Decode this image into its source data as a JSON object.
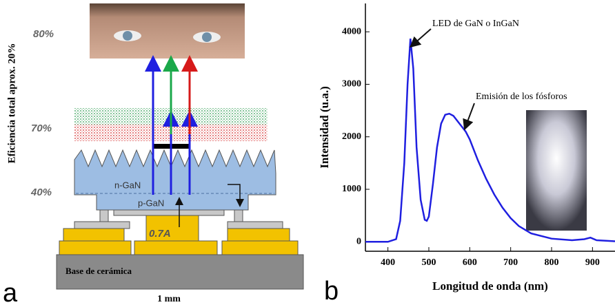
{
  "diagram": {
    "side_label": "Eficiencia total aprox. 20%",
    "levels": [
      "80%",
      "70%",
      "40%"
    ],
    "layers": [
      "n-GaN",
      "p-GaN"
    ],
    "current": "0.7A",
    "base": "Base de cerámica",
    "scale": "1 mm",
    "panel": "a"
  },
  "chart_data": {
    "type": "line",
    "panel": "b",
    "xlabel": "Longitud de onda (nm)",
    "ylabel": "Intensidad (u.a.)",
    "annotations": [
      "LED de GaN o InGaN",
      "Emisión de los fósforos"
    ],
    "color": "#1f1fe0",
    "x": [
      345,
      400,
      420,
      430,
      440,
      448,
      455,
      462,
      470,
      480,
      490,
      495,
      500,
      510,
      520,
      530,
      540,
      550,
      560,
      570,
      580,
      590,
      600,
      620,
      640,
      660,
      680,
      700,
      720,
      750,
      800,
      850,
      880,
      895,
      910,
      955
    ],
    "values": [
      0,
      0,
      50,
      400,
      1500,
      3000,
      3870,
      3300,
      1800,
      800,
      420,
      400,
      480,
      1100,
      1800,
      2250,
      2420,
      2440,
      2400,
      2300,
      2200,
      2100,
      1950,
      1550,
      1200,
      900,
      650,
      450,
      300,
      160,
      60,
      30,
      50,
      80,
      30,
      10
    ],
    "xlim": [
      345,
      955
    ],
    "ylim": [
      -180,
      4540
    ],
    "xticks": [
      400,
      500,
      600,
      700,
      800,
      900
    ],
    "yticks": [
      0,
      1000,
      2000,
      3000,
      4000
    ]
  }
}
